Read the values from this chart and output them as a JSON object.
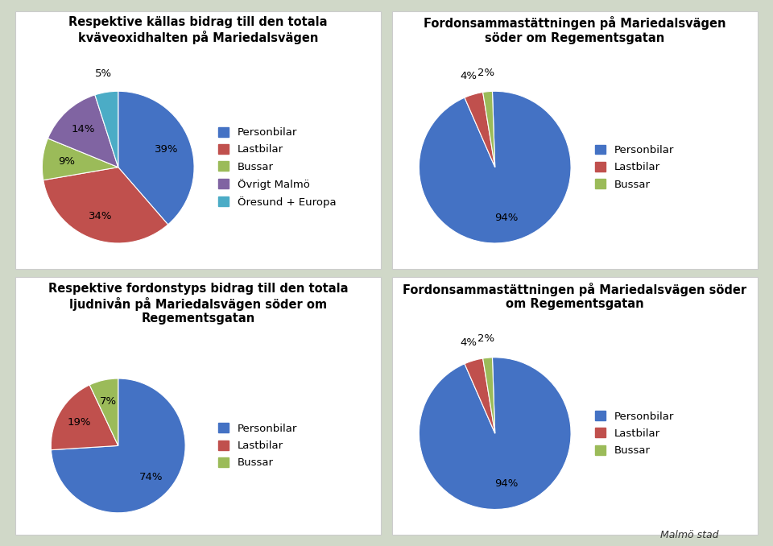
{
  "chart1": {
    "title": "Respektive källas bidrag till den totala\nkväveoxidhalten på Mariedalsvägen",
    "values": [
      39,
      34,
      9,
      14,
      5
    ],
    "labels": [
      "39%",
      "34%",
      "9%",
      "14%",
      "5%"
    ],
    "colors": [
      "#4472C4",
      "#C0504D",
      "#9BBB59",
      "#8064A2",
      "#4BACC6"
    ],
    "legend": [
      "Personbilar",
      "Lastbilar",
      "Bussar",
      "Övrigt Malmö",
      "Öresund + Europa"
    ],
    "startangle": 90
  },
  "chart2": {
    "title": "Fordonsammastättningen på Mariedalsvägen\nsöder om Regementsgatan",
    "values": [
      94,
      4,
      2
    ],
    "labels": [
      "94%",
      "4%",
      "2%"
    ],
    "colors": [
      "#4472C4",
      "#C0504D",
      "#9BBB59"
    ],
    "legend": [
      "Personbilar",
      "Lastbilar",
      "Bussar"
    ],
    "startangle": 92
  },
  "chart3": {
    "title": "Respektive fordonstyps bidrag till den totala\nljudnivån på Mariedalsvägen söder om\nRegementsgatan",
    "values": [
      74,
      19,
      7
    ],
    "labels": [
      "74%",
      "19%",
      "7%"
    ],
    "colors": [
      "#4472C4",
      "#C0504D",
      "#9BBB59"
    ],
    "legend": [
      "Personbilar",
      "Lastbilar",
      "Bussar"
    ],
    "startangle": 90
  },
  "chart4": {
    "title": "Fordonsammastättningen på Mariedalsvägen söder\nom Regementsgatan",
    "values": [
      94,
      4,
      2
    ],
    "labels": [
      "94%",
      "4%",
      "2%"
    ],
    "colors": [
      "#4472C4",
      "#C0504D",
      "#9BBB59"
    ],
    "legend": [
      "Personbilar",
      "Lastbilar",
      "Bussar"
    ],
    "startangle": 92
  },
  "outer_bg": "#d0d8c8",
  "panel_bg": "#ffffff",
  "panel_border": "#cccccc",
  "title_fontsize": 10.5,
  "label_fontsize": 9.5,
  "legend_fontsize": 9.5
}
